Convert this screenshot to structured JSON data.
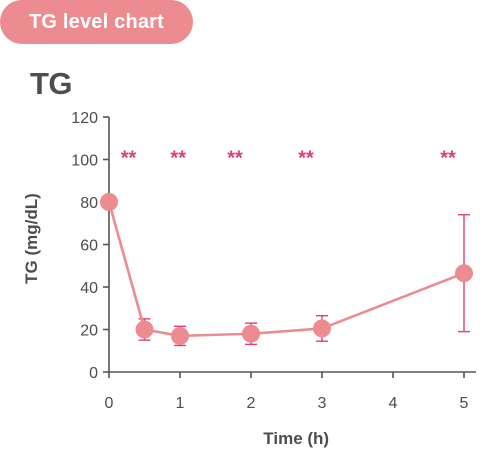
{
  "header": {
    "badge_label": "TG level chart"
  },
  "colors": {
    "accent": "#ec8c91",
    "significance": "#e03c7f",
    "axis": "#555555",
    "text": "#4d4d4d"
  },
  "chart_data": {
    "type": "line",
    "title": "TG",
    "xlabel": "Time (h)",
    "ylabel": "TG (mg/dL)",
    "xlim": [
      0,
      5
    ],
    "ylim": [
      0,
      120
    ],
    "xticks": [
      0,
      1,
      2,
      3,
      4,
      5
    ],
    "yticks": [
      0,
      20,
      40,
      60,
      80,
      100,
      120
    ],
    "grid": false,
    "series": [
      {
        "x": [
          0,
          0.5,
          1,
          2,
          3,
          5
        ],
        "y": [
          80,
          20,
          17,
          18,
          20.5,
          46.5
        ],
        "error_low": [
          null,
          15,
          12.5,
          13,
          14.5,
          19
        ],
        "error_high": [
          null,
          25,
          21.5,
          23,
          26.5,
          74
        ]
      }
    ],
    "annotations": [
      {
        "x": 0.5,
        "text": "**"
      },
      {
        "x": 1.2,
        "text": "**"
      },
      {
        "x": 2.0,
        "text": "**"
      },
      {
        "x": 3.0,
        "text": "**"
      },
      {
        "x": 5.0,
        "text": "**"
      }
    ]
  }
}
